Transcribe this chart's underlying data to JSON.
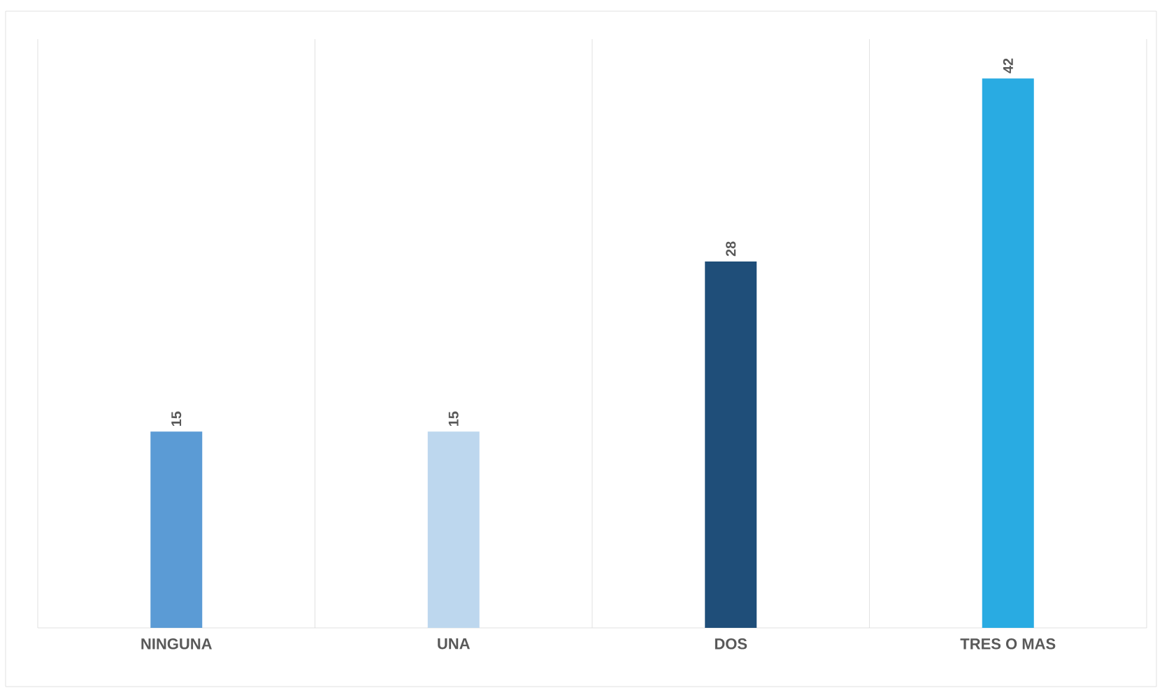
{
  "chart_data": {
    "type": "bar",
    "categories": [
      "NINGUNA",
      "UNA",
      "DOS",
      "TRES O MAS"
    ],
    "values": [
      15,
      15,
      28,
      42
    ],
    "colors": [
      "#5b9bd5",
      "#bdd7ee",
      "#1f4e79",
      "#29abe2"
    ],
    "ylim": [
      0,
      45
    ],
    "data_labels": true,
    "grid": "x",
    "tick_labels": "x"
  }
}
